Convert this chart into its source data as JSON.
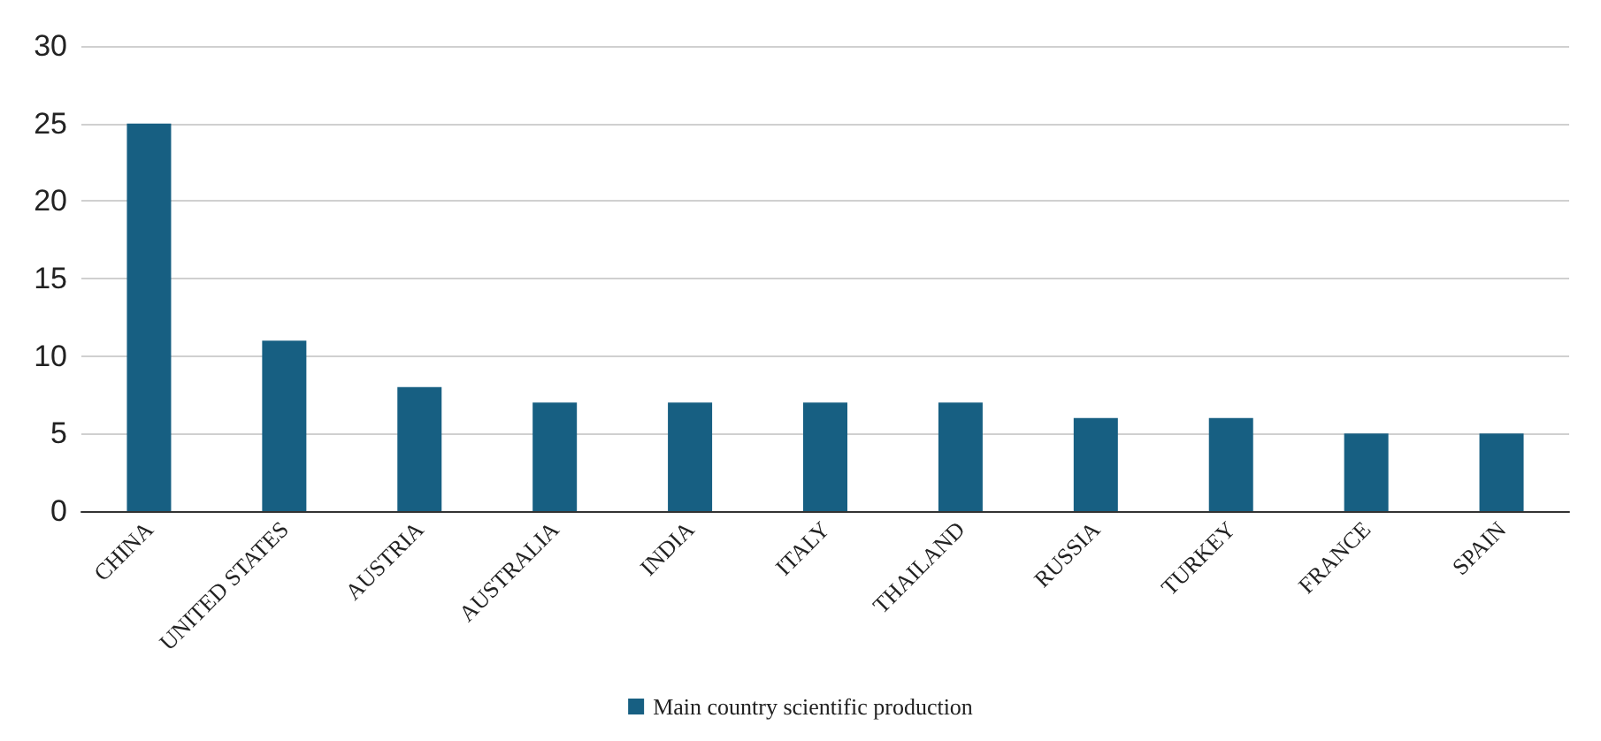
{
  "chart_data": {
    "type": "bar",
    "categories": [
      "CHINA",
      "UNITED STATES",
      "AUSTRIA",
      "AUSTRALIA",
      "INDIA",
      "ITALY",
      "THAILAND",
      "RUSSIA",
      "TURKEY",
      "FRANCE",
      "SPAIN"
    ],
    "series": [
      {
        "name": "Main country scientific production",
        "color": "#175f82",
        "values": [
          25,
          11,
          8,
          7,
          7,
          7,
          7,
          6,
          6,
          5,
          5
        ]
      }
    ],
    "ylim": [
      0,
      30
    ],
    "yticks": [
      0,
      5,
      10,
      15,
      20,
      25,
      30
    ],
    "grid": "y",
    "legend": "bottom"
  }
}
